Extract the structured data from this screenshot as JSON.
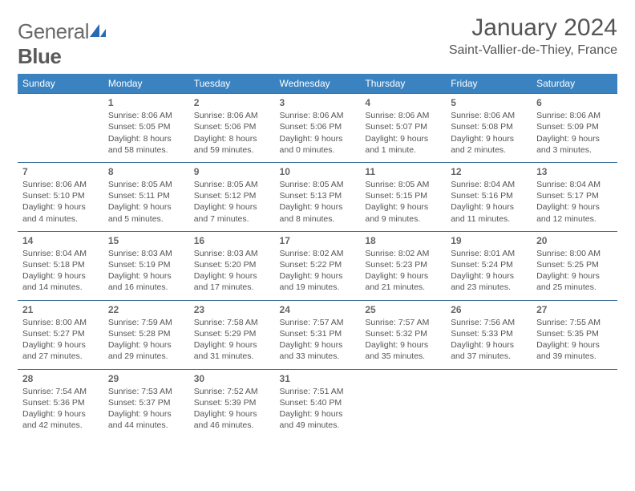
{
  "logo": {
    "part1": "General",
    "part2": "Blue"
  },
  "title": {
    "month": "January 2024",
    "location": "Saint-Vallier-de-Thiey, France"
  },
  "colors": {
    "header_bg": "#3b83c0",
    "header_text": "#ffffff",
    "rule": "#3b6e98",
    "text": "#555555",
    "logo_gray": "#6a6a6a",
    "logo_blue": "#2a6bb0"
  },
  "dayNames": [
    "Sunday",
    "Monday",
    "Tuesday",
    "Wednesday",
    "Thursday",
    "Friday",
    "Saturday"
  ],
  "weeks": [
    [
      {
        "n": "",
        "l1": "",
        "l2": "",
        "l3": "",
        "l4": ""
      },
      {
        "n": "1",
        "l1": "Sunrise: 8:06 AM",
        "l2": "Sunset: 5:05 PM",
        "l3": "Daylight: 8 hours",
        "l4": "and 58 minutes."
      },
      {
        "n": "2",
        "l1": "Sunrise: 8:06 AM",
        "l2": "Sunset: 5:06 PM",
        "l3": "Daylight: 8 hours",
        "l4": "and 59 minutes."
      },
      {
        "n": "3",
        "l1": "Sunrise: 8:06 AM",
        "l2": "Sunset: 5:06 PM",
        "l3": "Daylight: 9 hours",
        "l4": "and 0 minutes."
      },
      {
        "n": "4",
        "l1": "Sunrise: 8:06 AM",
        "l2": "Sunset: 5:07 PM",
        "l3": "Daylight: 9 hours",
        "l4": "and 1 minute."
      },
      {
        "n": "5",
        "l1": "Sunrise: 8:06 AM",
        "l2": "Sunset: 5:08 PM",
        "l3": "Daylight: 9 hours",
        "l4": "and 2 minutes."
      },
      {
        "n": "6",
        "l1": "Sunrise: 8:06 AM",
        "l2": "Sunset: 5:09 PM",
        "l3": "Daylight: 9 hours",
        "l4": "and 3 minutes."
      }
    ],
    [
      {
        "n": "7",
        "l1": "Sunrise: 8:06 AM",
        "l2": "Sunset: 5:10 PM",
        "l3": "Daylight: 9 hours",
        "l4": "and 4 minutes."
      },
      {
        "n": "8",
        "l1": "Sunrise: 8:05 AM",
        "l2": "Sunset: 5:11 PM",
        "l3": "Daylight: 9 hours",
        "l4": "and 5 minutes."
      },
      {
        "n": "9",
        "l1": "Sunrise: 8:05 AM",
        "l2": "Sunset: 5:12 PM",
        "l3": "Daylight: 9 hours",
        "l4": "and 7 minutes."
      },
      {
        "n": "10",
        "l1": "Sunrise: 8:05 AM",
        "l2": "Sunset: 5:13 PM",
        "l3": "Daylight: 9 hours",
        "l4": "and 8 minutes."
      },
      {
        "n": "11",
        "l1": "Sunrise: 8:05 AM",
        "l2": "Sunset: 5:15 PM",
        "l3": "Daylight: 9 hours",
        "l4": "and 9 minutes."
      },
      {
        "n": "12",
        "l1": "Sunrise: 8:04 AM",
        "l2": "Sunset: 5:16 PM",
        "l3": "Daylight: 9 hours",
        "l4": "and 11 minutes."
      },
      {
        "n": "13",
        "l1": "Sunrise: 8:04 AM",
        "l2": "Sunset: 5:17 PM",
        "l3": "Daylight: 9 hours",
        "l4": "and 12 minutes."
      }
    ],
    [
      {
        "n": "14",
        "l1": "Sunrise: 8:04 AM",
        "l2": "Sunset: 5:18 PM",
        "l3": "Daylight: 9 hours",
        "l4": "and 14 minutes."
      },
      {
        "n": "15",
        "l1": "Sunrise: 8:03 AM",
        "l2": "Sunset: 5:19 PM",
        "l3": "Daylight: 9 hours",
        "l4": "and 16 minutes."
      },
      {
        "n": "16",
        "l1": "Sunrise: 8:03 AM",
        "l2": "Sunset: 5:20 PM",
        "l3": "Daylight: 9 hours",
        "l4": "and 17 minutes."
      },
      {
        "n": "17",
        "l1": "Sunrise: 8:02 AM",
        "l2": "Sunset: 5:22 PM",
        "l3": "Daylight: 9 hours",
        "l4": "and 19 minutes."
      },
      {
        "n": "18",
        "l1": "Sunrise: 8:02 AM",
        "l2": "Sunset: 5:23 PM",
        "l3": "Daylight: 9 hours",
        "l4": "and 21 minutes."
      },
      {
        "n": "19",
        "l1": "Sunrise: 8:01 AM",
        "l2": "Sunset: 5:24 PM",
        "l3": "Daylight: 9 hours",
        "l4": "and 23 minutes."
      },
      {
        "n": "20",
        "l1": "Sunrise: 8:00 AM",
        "l2": "Sunset: 5:25 PM",
        "l3": "Daylight: 9 hours",
        "l4": "and 25 minutes."
      }
    ],
    [
      {
        "n": "21",
        "l1": "Sunrise: 8:00 AM",
        "l2": "Sunset: 5:27 PM",
        "l3": "Daylight: 9 hours",
        "l4": "and 27 minutes."
      },
      {
        "n": "22",
        "l1": "Sunrise: 7:59 AM",
        "l2": "Sunset: 5:28 PM",
        "l3": "Daylight: 9 hours",
        "l4": "and 29 minutes."
      },
      {
        "n": "23",
        "l1": "Sunrise: 7:58 AM",
        "l2": "Sunset: 5:29 PM",
        "l3": "Daylight: 9 hours",
        "l4": "and 31 minutes."
      },
      {
        "n": "24",
        "l1": "Sunrise: 7:57 AM",
        "l2": "Sunset: 5:31 PM",
        "l3": "Daylight: 9 hours",
        "l4": "and 33 minutes."
      },
      {
        "n": "25",
        "l1": "Sunrise: 7:57 AM",
        "l2": "Sunset: 5:32 PM",
        "l3": "Daylight: 9 hours",
        "l4": "and 35 minutes."
      },
      {
        "n": "26",
        "l1": "Sunrise: 7:56 AM",
        "l2": "Sunset: 5:33 PM",
        "l3": "Daylight: 9 hours",
        "l4": "and 37 minutes."
      },
      {
        "n": "27",
        "l1": "Sunrise: 7:55 AM",
        "l2": "Sunset: 5:35 PM",
        "l3": "Daylight: 9 hours",
        "l4": "and 39 minutes."
      }
    ],
    [
      {
        "n": "28",
        "l1": "Sunrise: 7:54 AM",
        "l2": "Sunset: 5:36 PM",
        "l3": "Daylight: 9 hours",
        "l4": "and 42 minutes."
      },
      {
        "n": "29",
        "l1": "Sunrise: 7:53 AM",
        "l2": "Sunset: 5:37 PM",
        "l3": "Daylight: 9 hours",
        "l4": "and 44 minutes."
      },
      {
        "n": "30",
        "l1": "Sunrise: 7:52 AM",
        "l2": "Sunset: 5:39 PM",
        "l3": "Daylight: 9 hours",
        "l4": "and 46 minutes."
      },
      {
        "n": "31",
        "l1": "Sunrise: 7:51 AM",
        "l2": "Sunset: 5:40 PM",
        "l3": "Daylight: 9 hours",
        "l4": "and 49 minutes."
      },
      {
        "n": "",
        "l1": "",
        "l2": "",
        "l3": "",
        "l4": ""
      },
      {
        "n": "",
        "l1": "",
        "l2": "",
        "l3": "",
        "l4": ""
      },
      {
        "n": "",
        "l1": "",
        "l2": "",
        "l3": "",
        "l4": ""
      }
    ]
  ]
}
